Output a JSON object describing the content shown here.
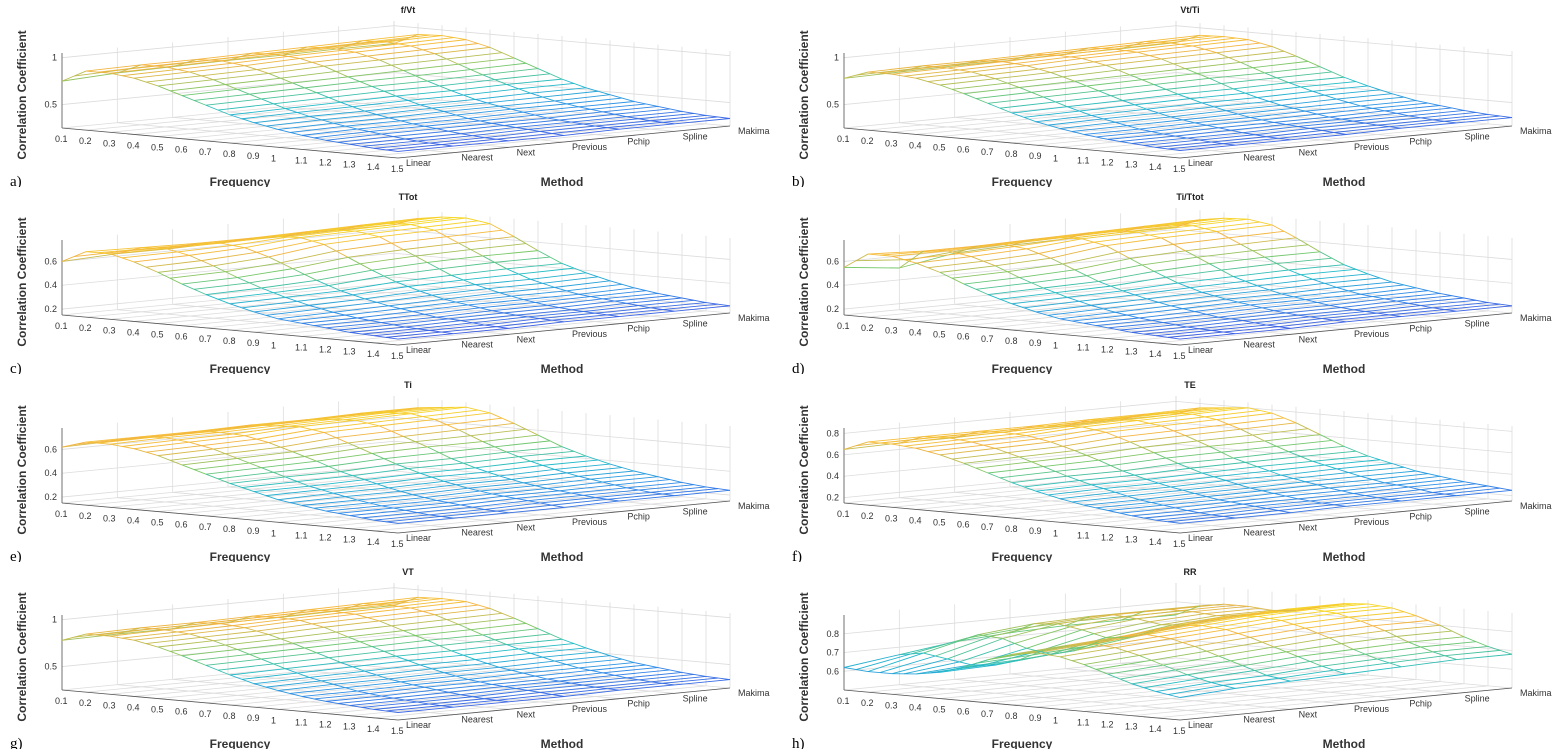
{
  "chart_data": [
    {
      "type": "surface",
      "letter": "a)",
      "title": "f/Vt",
      "xlabel": "Frequency",
      "ylabel": "Method",
      "zlabel": "Correlation Coefficient",
      "zlim": [
        0.25,
        1.05
      ],
      "zticks": [
        0.5,
        1
      ],
      "z": [
        [
          0.75,
          0.88,
          0.88,
          0.85,
          0.79,
          0.71,
          0.63,
          0.55,
          0.49,
          0.44,
          0.4,
          0.37,
          0.35,
          0.33,
          0.32
        ],
        [
          0.78,
          0.89,
          0.89,
          0.86,
          0.8,
          0.72,
          0.64,
          0.56,
          0.5,
          0.45,
          0.41,
          0.38,
          0.35,
          0.33,
          0.32
        ],
        [
          0.79,
          0.89,
          0.9,
          0.87,
          0.81,
          0.73,
          0.65,
          0.57,
          0.5,
          0.45,
          0.41,
          0.38,
          0.35,
          0.33,
          0.32
        ],
        [
          0.8,
          0.9,
          0.91,
          0.89,
          0.83,
          0.74,
          0.66,
          0.58,
          0.51,
          0.46,
          0.41,
          0.38,
          0.36,
          0.34,
          0.32
        ],
        [
          0.8,
          0.91,
          0.92,
          0.9,
          0.84,
          0.75,
          0.66,
          0.58,
          0.51,
          0.46,
          0.42,
          0.38,
          0.36,
          0.34,
          0.33
        ],
        [
          0.81,
          0.92,
          0.93,
          0.91,
          0.85,
          0.76,
          0.67,
          0.59,
          0.52,
          0.46,
          0.42,
          0.39,
          0.36,
          0.34,
          0.33
        ],
        [
          0.81,
          0.93,
          0.94,
          0.92,
          0.86,
          0.77,
          0.68,
          0.59,
          0.52,
          0.47,
          0.42,
          0.39,
          0.36,
          0.34,
          0.33
        ]
      ]
    },
    {
      "type": "surface",
      "letter": "b)",
      "title": "Vt/Ti",
      "xlabel": "Frequency",
      "ylabel": "Method",
      "zlabel": "Correlation Coefficient",
      "zlim": [
        0.25,
        1.05
      ],
      "zticks": [
        0.5,
        1
      ],
      "z": [
        [
          0.78,
          0.87,
          0.87,
          0.85,
          0.8,
          0.73,
          0.65,
          0.57,
          0.5,
          0.45,
          0.41,
          0.38,
          0.36,
          0.34,
          0.33
        ],
        [
          0.79,
          0.88,
          0.88,
          0.86,
          0.81,
          0.74,
          0.66,
          0.58,
          0.51,
          0.46,
          0.41,
          0.38,
          0.36,
          0.34,
          0.33
        ],
        [
          0.8,
          0.88,
          0.89,
          0.87,
          0.82,
          0.75,
          0.67,
          0.59,
          0.52,
          0.46,
          0.42,
          0.39,
          0.36,
          0.34,
          0.33
        ],
        [
          0.8,
          0.89,
          0.9,
          0.89,
          0.84,
          0.76,
          0.68,
          0.6,
          0.53,
          0.47,
          0.42,
          0.39,
          0.37,
          0.35,
          0.33
        ],
        [
          0.81,
          0.9,
          0.91,
          0.9,
          0.85,
          0.77,
          0.69,
          0.6,
          0.53,
          0.47,
          0.43,
          0.39,
          0.37,
          0.35,
          0.34
        ],
        [
          0.81,
          0.91,
          0.92,
          0.91,
          0.86,
          0.78,
          0.69,
          0.61,
          0.54,
          0.48,
          0.43,
          0.4,
          0.37,
          0.35,
          0.34
        ],
        [
          0.82,
          0.92,
          0.93,
          0.92,
          0.87,
          0.79,
          0.7,
          0.61,
          0.54,
          0.48,
          0.43,
          0.4,
          0.37,
          0.35,
          0.34
        ]
      ]
    },
    {
      "type": "surface",
      "letter": "c)",
      "title": "TTot",
      "xlabel": "Frequency",
      "ylabel": "Method",
      "zlabel": "Correlation Coefficient",
      "zlim": [
        0.15,
        0.78
      ],
      "zticks": [
        0.2,
        0.4,
        0.6
      ],
      "z": [
        [
          0.6,
          0.7,
          0.7,
          0.65,
          0.58,
          0.5,
          0.43,
          0.37,
          0.32,
          0.28,
          0.26,
          0.24,
          0.22,
          0.21,
          0.2
        ],
        [
          0.62,
          0.69,
          0.7,
          0.66,
          0.59,
          0.51,
          0.44,
          0.38,
          0.33,
          0.29,
          0.26,
          0.24,
          0.22,
          0.21,
          0.2
        ],
        [
          0.62,
          0.68,
          0.7,
          0.68,
          0.62,
          0.54,
          0.46,
          0.39,
          0.34,
          0.3,
          0.27,
          0.24,
          0.23,
          0.21,
          0.2
        ],
        [
          0.63,
          0.68,
          0.71,
          0.72,
          0.68,
          0.59,
          0.5,
          0.42,
          0.36,
          0.31,
          0.28,
          0.25,
          0.23,
          0.22,
          0.21
        ],
        [
          0.63,
          0.69,
          0.72,
          0.73,
          0.7,
          0.61,
          0.52,
          0.43,
          0.37,
          0.32,
          0.28,
          0.25,
          0.23,
          0.22,
          0.21
        ],
        [
          0.64,
          0.7,
          0.73,
          0.74,
          0.71,
          0.62,
          0.53,
          0.44,
          0.37,
          0.32,
          0.28,
          0.26,
          0.24,
          0.22,
          0.21
        ],
        [
          0.64,
          0.71,
          0.74,
          0.75,
          0.72,
          0.63,
          0.53,
          0.44,
          0.38,
          0.33,
          0.29,
          0.26,
          0.24,
          0.22,
          0.21
        ]
      ]
    },
    {
      "type": "surface",
      "letter": "d)",
      "title": "Ti/Ttot",
      "xlabel": "Frequency",
      "ylabel": "Method",
      "zlabel": "Correlation Coefficient",
      "zlim": [
        0.15,
        0.78
      ],
      "zticks": [
        0.2,
        0.4,
        0.6
      ],
      "z": [
        [
          0.55,
          0.68,
          0.68,
          0.64,
          0.58,
          0.5,
          0.43,
          0.37,
          0.32,
          0.28,
          0.26,
          0.24,
          0.22,
          0.21,
          0.2
        ],
        [
          0.5,
          0.66,
          0.68,
          0.65,
          0.59,
          0.51,
          0.44,
          0.38,
          0.33,
          0.29,
          0.26,
          0.24,
          0.22,
          0.21,
          0.2
        ],
        [
          0.58,
          0.66,
          0.69,
          0.67,
          0.61,
          0.53,
          0.45,
          0.39,
          0.34,
          0.3,
          0.27,
          0.24,
          0.23,
          0.21,
          0.2
        ],
        [
          0.6,
          0.67,
          0.7,
          0.71,
          0.67,
          0.58,
          0.49,
          0.41,
          0.35,
          0.31,
          0.28,
          0.25,
          0.23,
          0.22,
          0.21
        ],
        [
          0.61,
          0.68,
          0.71,
          0.72,
          0.69,
          0.6,
          0.51,
          0.42,
          0.36,
          0.31,
          0.28,
          0.25,
          0.23,
          0.22,
          0.21
        ],
        [
          0.62,
          0.69,
          0.72,
          0.73,
          0.7,
          0.61,
          0.52,
          0.43,
          0.37,
          0.32,
          0.28,
          0.26,
          0.24,
          0.22,
          0.21
        ],
        [
          0.62,
          0.7,
          0.73,
          0.74,
          0.71,
          0.62,
          0.52,
          0.43,
          0.37,
          0.32,
          0.29,
          0.26,
          0.24,
          0.22,
          0.21
        ]
      ]
    },
    {
      "type": "surface",
      "letter": "e)",
      "title": "Ti",
      "xlabel": "Frequency",
      "ylabel": "Method",
      "zlabel": "Correlation Coefficient",
      "zlim": [
        0.15,
        0.78
      ],
      "zticks": [
        0.2,
        0.4,
        0.6
      ],
      "z": [
        [
          0.62,
          0.68,
          0.68,
          0.66,
          0.62,
          0.56,
          0.5,
          0.44,
          0.39,
          0.34,
          0.31,
          0.28,
          0.26,
          0.24,
          0.23
        ],
        [
          0.63,
          0.68,
          0.69,
          0.67,
          0.63,
          0.57,
          0.51,
          0.45,
          0.39,
          0.35,
          0.31,
          0.28,
          0.26,
          0.24,
          0.23
        ],
        [
          0.63,
          0.68,
          0.69,
          0.68,
          0.64,
          0.58,
          0.52,
          0.45,
          0.4,
          0.35,
          0.31,
          0.28,
          0.26,
          0.24,
          0.23
        ],
        [
          0.64,
          0.69,
          0.7,
          0.71,
          0.68,
          0.61,
          0.54,
          0.47,
          0.41,
          0.36,
          0.32,
          0.29,
          0.27,
          0.25,
          0.23
        ],
        [
          0.64,
          0.69,
          0.71,
          0.72,
          0.69,
          0.62,
          0.55,
          0.47,
          0.41,
          0.36,
          0.32,
          0.29,
          0.27,
          0.25,
          0.24
        ],
        [
          0.65,
          0.7,
          0.72,
          0.73,
          0.7,
          0.63,
          0.55,
          0.48,
          0.42,
          0.37,
          0.33,
          0.3,
          0.27,
          0.25,
          0.24
        ],
        [
          0.65,
          0.7,
          0.72,
          0.74,
          0.71,
          0.64,
          0.56,
          0.48,
          0.42,
          0.37,
          0.33,
          0.3,
          0.27,
          0.25,
          0.24
        ]
      ]
    },
    {
      "type": "surface",
      "letter": "f)",
      "title": "TE",
      "xlabel": "Frequency",
      "ylabel": "Method",
      "zlabel": "Correlation Coefficient",
      "zlim": [
        0.15,
        0.85
      ],
      "zticks": [
        0.2,
        0.4,
        0.6,
        0.8
      ],
      "z": [
        [
          0.65,
          0.74,
          0.74,
          0.72,
          0.68,
          0.62,
          0.55,
          0.48,
          0.42,
          0.37,
          0.33,
          0.3,
          0.27,
          0.25,
          0.24
        ],
        [
          0.66,
          0.74,
          0.75,
          0.73,
          0.69,
          0.63,
          0.56,
          0.49,
          0.43,
          0.38,
          0.33,
          0.3,
          0.27,
          0.25,
          0.24
        ],
        [
          0.66,
          0.74,
          0.75,
          0.74,
          0.7,
          0.64,
          0.57,
          0.49,
          0.43,
          0.38,
          0.34,
          0.3,
          0.28,
          0.26,
          0.24
        ],
        [
          0.67,
          0.74,
          0.76,
          0.77,
          0.74,
          0.67,
          0.59,
          0.51,
          0.44,
          0.39,
          0.34,
          0.31,
          0.28,
          0.26,
          0.25
        ],
        [
          0.67,
          0.75,
          0.77,
          0.78,
          0.75,
          0.68,
          0.6,
          0.51,
          0.45,
          0.39,
          0.35,
          0.31,
          0.28,
          0.26,
          0.25
        ],
        [
          0.68,
          0.75,
          0.78,
          0.79,
          0.76,
          0.69,
          0.6,
          0.52,
          0.45,
          0.4,
          0.35,
          0.31,
          0.29,
          0.26,
          0.25
        ],
        [
          0.68,
          0.76,
          0.78,
          0.8,
          0.77,
          0.7,
          0.61,
          0.52,
          0.45,
          0.4,
          0.35,
          0.32,
          0.29,
          0.27,
          0.25
        ]
      ]
    },
    {
      "type": "surface",
      "letter": "g)",
      "title": "VT",
      "xlabel": "Frequency",
      "ylabel": "Method",
      "zlabel": "Correlation Coefficient",
      "zlim": [
        0.25,
        1.05
      ],
      "zticks": [
        0.5,
        1
      ],
      "z": [
        [
          0.78,
          0.87,
          0.87,
          0.85,
          0.8,
          0.73,
          0.65,
          0.57,
          0.5,
          0.45,
          0.41,
          0.38,
          0.36,
          0.34,
          0.33
        ],
        [
          0.79,
          0.88,
          0.88,
          0.86,
          0.81,
          0.74,
          0.66,
          0.58,
          0.51,
          0.46,
          0.41,
          0.38,
          0.36,
          0.34,
          0.33
        ],
        [
          0.79,
          0.88,
          0.89,
          0.87,
          0.82,
          0.75,
          0.67,
          0.59,
          0.52,
          0.46,
          0.42,
          0.39,
          0.36,
          0.34,
          0.33
        ],
        [
          0.8,
          0.89,
          0.9,
          0.89,
          0.84,
          0.76,
          0.68,
          0.6,
          0.53,
          0.47,
          0.42,
          0.39,
          0.37,
          0.35,
          0.33
        ],
        [
          0.8,
          0.9,
          0.91,
          0.9,
          0.85,
          0.77,
          0.69,
          0.6,
          0.53,
          0.47,
          0.43,
          0.39,
          0.37,
          0.35,
          0.34
        ],
        [
          0.81,
          0.91,
          0.92,
          0.91,
          0.86,
          0.78,
          0.69,
          0.61,
          0.54,
          0.48,
          0.43,
          0.4,
          0.37,
          0.35,
          0.34
        ],
        [
          0.81,
          0.92,
          0.93,
          0.92,
          0.87,
          0.79,
          0.7,
          0.61,
          0.54,
          0.48,
          0.43,
          0.4,
          0.37,
          0.35,
          0.34
        ]
      ]
    },
    {
      "type": "surface",
      "letter": "h)",
      "title": "RR",
      "xlabel": "Frequency",
      "ylabel": "Method",
      "zlabel": "Correlation Coefficient",
      "zlim": [
        0.5,
        0.9
      ],
      "zticks": [
        0.6,
        0.7,
        0.8
      ],
      "z": [
        [
          0.62,
          0.61,
          0.61,
          0.62,
          0.64,
          0.68,
          0.73,
          0.77,
          0.79,
          0.78,
          0.75,
          0.71,
          0.67,
          0.64,
          0.62
        ],
        [
          0.66,
          0.68,
          0.66,
          0.64,
          0.65,
          0.69,
          0.75,
          0.79,
          0.81,
          0.8,
          0.77,
          0.73,
          0.69,
          0.66,
          0.64
        ],
        [
          0.7,
          0.75,
          0.74,
          0.7,
          0.68,
          0.71,
          0.77,
          0.81,
          0.83,
          0.82,
          0.79,
          0.75,
          0.71,
          0.67,
          0.65
        ],
        [
          0.72,
          0.78,
          0.79,
          0.77,
          0.74,
          0.75,
          0.8,
          0.84,
          0.85,
          0.84,
          0.81,
          0.77,
          0.73,
          0.69,
          0.66
        ],
        [
          0.73,
          0.79,
          0.81,
          0.8,
          0.78,
          0.79,
          0.83,
          0.86,
          0.87,
          0.86,
          0.83,
          0.79,
          0.74,
          0.7,
          0.67
        ],
        [
          0.73,
          0.79,
          0.81,
          0.81,
          0.8,
          0.81,
          0.84,
          0.87,
          0.88,
          0.87,
          0.84,
          0.8,
          0.75,
          0.71,
          0.68
        ],
        [
          0.73,
          0.79,
          0.81,
          0.81,
          0.8,
          0.81,
          0.84,
          0.87,
          0.88,
          0.87,
          0.84,
          0.8,
          0.75,
          0.71,
          0.68
        ]
      ]
    }
  ],
  "frequencies": [
    0.1,
    0.2,
    0.3,
    0.4,
    0.5,
    0.6,
    0.7,
    0.8,
    0.9,
    1,
    1.1,
    1.2,
    1.3,
    1.4,
    1.5
  ],
  "methods": [
    "Linear",
    "Nearest",
    "Next",
    "Previous",
    "Pchip",
    "Spline",
    "Makima"
  ],
  "colormap": [
    "#4a3fe0",
    "#2e8fe8",
    "#22bcc8",
    "#78c868",
    "#f5b440",
    "#f6e61c"
  ],
  "grid_color": "#dcdcdc",
  "grid": true
}
